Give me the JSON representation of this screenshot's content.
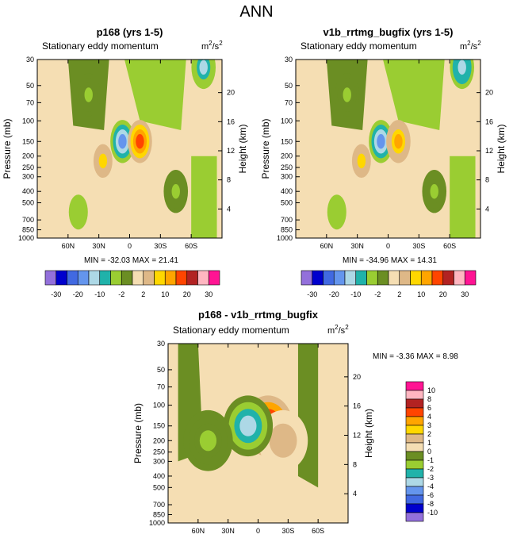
{
  "page_title": "ANN",
  "panels": [
    {
      "title": "p168 (yrs 1-5)",
      "subtitle": "Stationary eddy momentum",
      "units_base": "m",
      "units_exp1": "2",
      "units_mid": "/s",
      "units_exp2": "2",
      "ylabel": "Pressure (mb)",
      "ylabel_right": "Height (km)",
      "stats": "MIN = -32.03  MAX = 21.41",
      "features": [
        {
          "lat": 26,
          "p": 220,
          "value": 8
        },
        {
          "lat": 7,
          "p": 150,
          "value": -15
        },
        {
          "lat": -10,
          "p": 150,
          "value": 20
        },
        {
          "lat": 40,
          "p": 60,
          "value": -2
        },
        {
          "lat": -72,
          "p": 35,
          "value": -12
        },
        {
          "lat": -45,
          "p": 400,
          "value": -2
        }
      ]
    },
    {
      "title": "v1b_rrtmg_bugfix (yrs 1-5)",
      "subtitle": "Stationary eddy momentum",
      "units_base": "m",
      "units_exp1": "2",
      "units_mid": "/s",
      "units_exp2": "2",
      "ylabel": "Pressure (mb)",
      "ylabel_right": "Height (km)",
      "stats": "MIN = -34.96  MAX = 14.31",
      "features": [
        {
          "lat": 26,
          "p": 220,
          "value": 8
        },
        {
          "lat": 7,
          "p": 150,
          "value": -15
        },
        {
          "lat": -10,
          "p": 150,
          "value": 12
        },
        {
          "lat": 40,
          "p": 60,
          "value": -2
        },
        {
          "lat": -72,
          "p": 35,
          "value": -14
        },
        {
          "lat": -45,
          "p": 400,
          "value": -2
        }
      ]
    },
    {
      "title": "p168 - v1b_rrtmg_bugfix",
      "subtitle": "Stationary eddy momentum",
      "units_base": "m",
      "units_exp1": "2",
      "units_mid": "/s",
      "units_exp2": "2",
      "ylabel": "Pressure (mb)",
      "ylabel_right": "Height (km)",
      "stats": "MIN =  -3.36  MAX =   8.98",
      "features": [
        {
          "lat": -10,
          "p": 150,
          "value": 8
        },
        {
          "lat": -25,
          "p": 200,
          "value": 2
        },
        {
          "lat": 10,
          "p": 150,
          "value": -3
        },
        {
          "lat": 50,
          "p": 200,
          "value": -1
        }
      ]
    }
  ],
  "chart_data": [
    {
      "type": "heatmap",
      "title": "p168 (yrs 1-5)",
      "subtitle": "Stationary eddy momentum",
      "units": "m2/s2",
      "xlabel": "",
      "ylabel": "Pressure (mb)",
      "ylabel_right": "Height (km)",
      "x_ticks": [
        "60N",
        "30N",
        "0",
        "30S",
        "60S"
      ],
      "x_tick_values": [
        60,
        30,
        0,
        -30,
        -60
      ],
      "xlim": [
        90,
        -90
      ],
      "y_ticks": [
        30,
        50,
        70,
        100,
        150,
        200,
        250,
        300,
        400,
        500,
        700,
        850,
        1000
      ],
      "ylim": [
        30,
        1000
      ],
      "y_right_ticks": [
        4,
        8,
        12,
        16,
        20
      ],
      "min": -32.03,
      "max": 21.41
    },
    {
      "type": "heatmap",
      "title": "v1b_rrtmg_bugfix (yrs 1-5)",
      "subtitle": "Stationary eddy momentum",
      "units": "m2/s2",
      "xlabel": "",
      "ylabel": "Pressure (mb)",
      "ylabel_right": "Height (km)",
      "x_ticks": [
        "60N",
        "30N",
        "0",
        "30S",
        "60S"
      ],
      "x_tick_values": [
        60,
        30,
        0,
        -30,
        -60
      ],
      "xlim": [
        90,
        -90
      ],
      "y_ticks": [
        30,
        50,
        70,
        100,
        150,
        200,
        250,
        300,
        400,
        500,
        700,
        850,
        1000
      ],
      "ylim": [
        30,
        1000
      ],
      "y_right_ticks": [
        4,
        8,
        12,
        16,
        20
      ],
      "min": -34.96,
      "max": 14.31
    },
    {
      "type": "heatmap",
      "title": "p168 - v1b_rrtmg_bugfix",
      "subtitle": "Stationary eddy momentum",
      "units": "m2/s2",
      "xlabel": "",
      "ylabel": "Pressure (mb)",
      "ylabel_right": "Height (km)",
      "x_ticks": [
        "60N",
        "30N",
        "0",
        "30S",
        "60S"
      ],
      "x_tick_values": [
        60,
        30,
        0,
        -30,
        -60
      ],
      "xlim": [
        90,
        -90
      ],
      "y_ticks": [
        30,
        50,
        70,
        100,
        150,
        200,
        250,
        300,
        400,
        500,
        700,
        850,
        1000
      ],
      "ylim": [
        30,
        1000
      ],
      "y_right_ticks": [
        4,
        8,
        12,
        16,
        20
      ],
      "min": -3.36,
      "max": 8.98
    }
  ],
  "colorbar_main": {
    "colors": [
      "#9370db",
      "#0000cd",
      "#4169e1",
      "#6495ed",
      "#add8e6",
      "#20b2aa",
      "#9acd32",
      "#6b8e23",
      "#f5deb3",
      "#deb887",
      "#ffd700",
      "#ffa500",
      "#ff4500",
      "#b22222",
      "#ffb6c1",
      "#ff1493"
    ],
    "labels": [
      "-30",
      "-20",
      "-10",
      "-2",
      "2",
      "10",
      "20",
      "30"
    ]
  },
  "colorbar_diff": {
    "colors": [
      "#9370db",
      "#0000cd",
      "#4169e1",
      "#6495ed",
      "#add8e6",
      "#20b2aa",
      "#9acd32",
      "#6b8e23",
      "#f5deb3",
      "#deb887",
      "#ffd700",
      "#ffa500",
      "#ff4500",
      "#b22222",
      "#ffb6c1",
      "#ff1493"
    ],
    "labels": [
      "10",
      "8",
      "6",
      "4",
      "3",
      "2",
      "1",
      "0",
      "-1",
      "-2",
      "-3",
      "-4",
      "-6",
      "-8",
      "-10"
    ]
  }
}
